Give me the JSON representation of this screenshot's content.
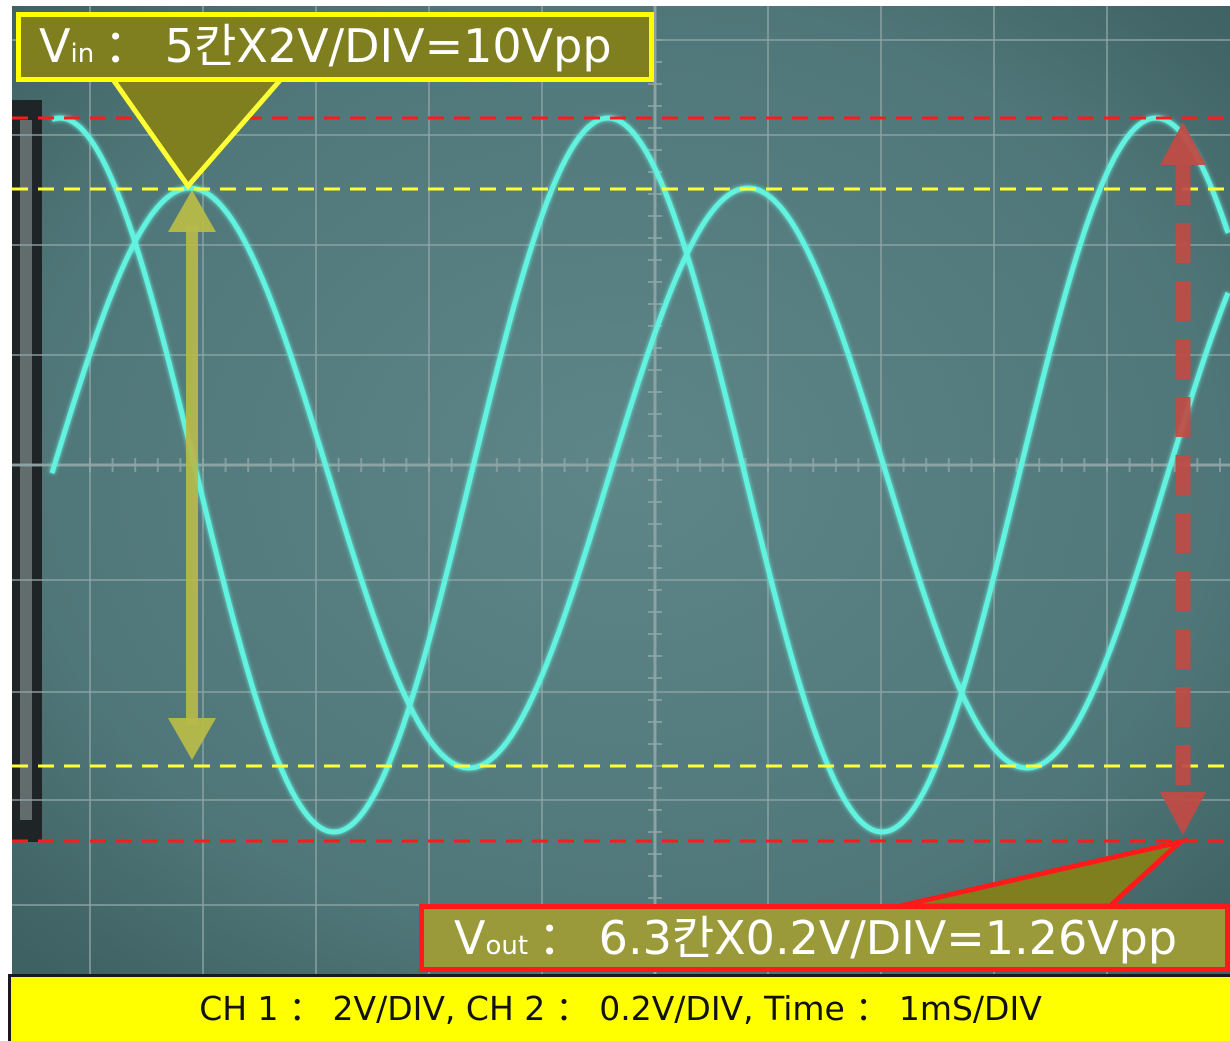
{
  "annotations": {
    "vin": {
      "symbol": "V",
      "subscript": "in",
      "text": "： 5칸X2V/DIV=10Vpp"
    },
    "vout": {
      "symbol": "V",
      "subscript": "out",
      "text": "： 6.3칸X0.2V/DIV=1.26Vpp"
    }
  },
  "settings": "CH 1 ： 2V/DIV, CH 2 ： 0.2V/DIV, Time ： 1mS/DIV",
  "colors": {
    "screen": "#51787a",
    "grid": "#8fa5a6",
    "trace": "#62f2e0",
    "vin_marker": "#ffff33",
    "vout_marker": "#ff1a1a",
    "vin_arrow": "#b7bb4a",
    "vout_arrow": "#c04b45",
    "callout_fill": "#7f7f1f",
    "settings_fill": "#ffff00"
  }
}
